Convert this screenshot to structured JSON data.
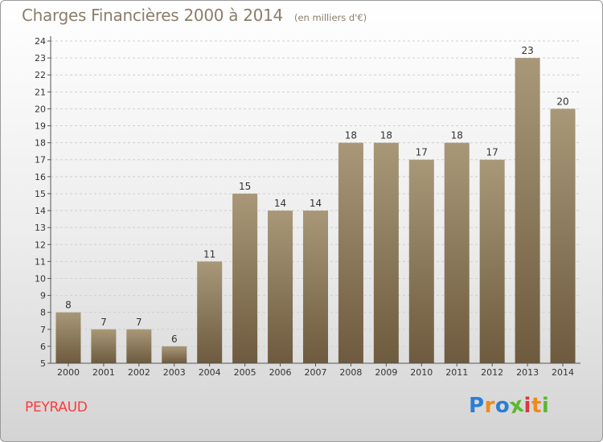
{
  "header": {
    "title": "Charges Financières 2000 à 2014",
    "unit": "(en milliers d'€)"
  },
  "commune": "PEYRAUD",
  "logo": {
    "letters": [
      "P",
      "r",
      "o",
      "x",
      "i",
      "t",
      "i"
    ],
    "colors": [
      "#2a7fd4",
      "#ee8a1c",
      "#2a7fd4",
      "#5cb82e",
      "#d93a3a",
      "#ee8a1c",
      "#5cb82e"
    ]
  },
  "chart_data": {
    "type": "bar",
    "title": "Charges Financières 2000 à 2014",
    "subtitle": "(en milliers d'€)",
    "xlabel": "",
    "ylabel": "",
    "categories": [
      "2000",
      "2001",
      "2002",
      "2003",
      "2004",
      "2005",
      "2006",
      "2007",
      "2008",
      "2009",
      "2010",
      "2011",
      "2012",
      "2013",
      "2014"
    ],
    "values": [
      8,
      7,
      7,
      6,
      11,
      15,
      14,
      14,
      18,
      18,
      17,
      18,
      17,
      23,
      20
    ],
    "ylim": [
      5,
      24
    ],
    "yticks": [
      5,
      6,
      7,
      8,
      9,
      10,
      11,
      12,
      13,
      14,
      15,
      16,
      17,
      18,
      19,
      20,
      21,
      22,
      23,
      24
    ],
    "grid": true,
    "legend": "none",
    "bar_color_top": "#a89878",
    "bar_color_bottom": "#6e5a3e"
  }
}
